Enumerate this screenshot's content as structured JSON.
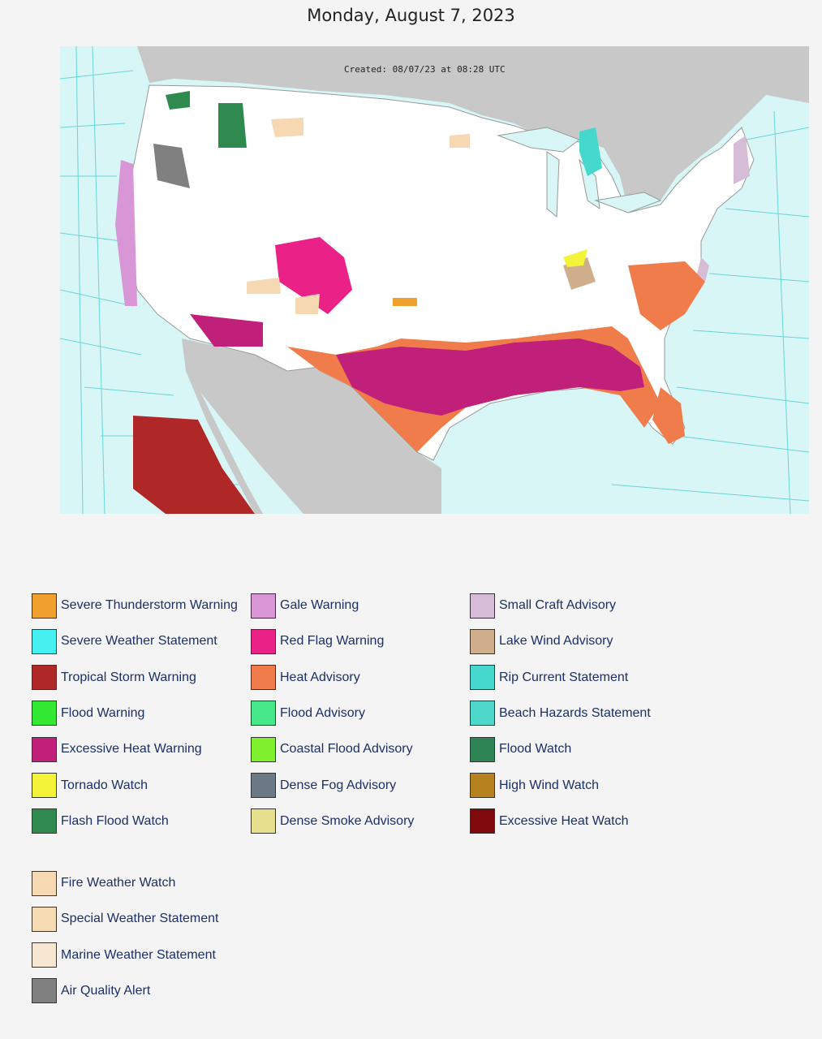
{
  "page": {
    "date_title": "Monday, August 7, 2023"
  },
  "map": {
    "created_label": "Created: 08/07/23 at 08:28 UTC"
  },
  "legend": [
    {
      "label": "Severe Thunderstorm Warning",
      "color": "#f0a02c"
    },
    {
      "label": "Severe Weather Statement",
      "color": "#44f0f0"
    },
    {
      "label": "Tropical Storm Warning",
      "color": "#b02727"
    },
    {
      "label": "Flood Warning",
      "color": "#33e833"
    },
    {
      "label": "Excessive Heat Warning",
      "color": "#c0207a"
    },
    {
      "label": "Tornado Watch",
      "color": "#f3f33a"
    },
    {
      "label": "Flash Flood Watch",
      "color": "#2f8a4f"
    },
    {
      "label": "Gale Warning",
      "color": "#d896d6"
    },
    {
      "label": "Red Flag Warning",
      "color": "#ea2288"
    },
    {
      "label": "Heat Advisory",
      "color": "#f07c4c"
    },
    {
      "label": "Flood Advisory",
      "color": "#46e88a"
    },
    {
      "label": "Coastal Flood Advisory",
      "color": "#7ef02e"
    },
    {
      "label": "Dense Fog Advisory",
      "color": "#6c7a88"
    },
    {
      "label": "Dense Smoke Advisory",
      "color": "#e6df8e"
    },
    {
      "label": "Small Craft Advisory",
      "color": "#d6bcd6"
    },
    {
      "label": "Lake Wind Advisory",
      "color": "#cfae8c"
    },
    {
      "label": "Rip Current Statement",
      "color": "#46d8cc"
    },
    {
      "label": "Beach Hazards Statement",
      "color": "#4ed8cc"
    },
    {
      "label": "Flood Watch",
      "color": "#2f8456"
    },
    {
      "label": "High Wind Watch",
      "color": "#b5821d"
    },
    {
      "label": "Excessive Heat Watch",
      "color": "#7e0a0e"
    },
    {
      "label": "Fire Weather Watch",
      "color": "#f6d8b2"
    },
    {
      "label": "Special Weather Statement",
      "color": "#f6dcb4"
    },
    {
      "label": "Marine Weather Statement",
      "color": "#f7e6d2"
    },
    {
      "label": "Air Quality Alert",
      "color": "#808080"
    }
  ]
}
